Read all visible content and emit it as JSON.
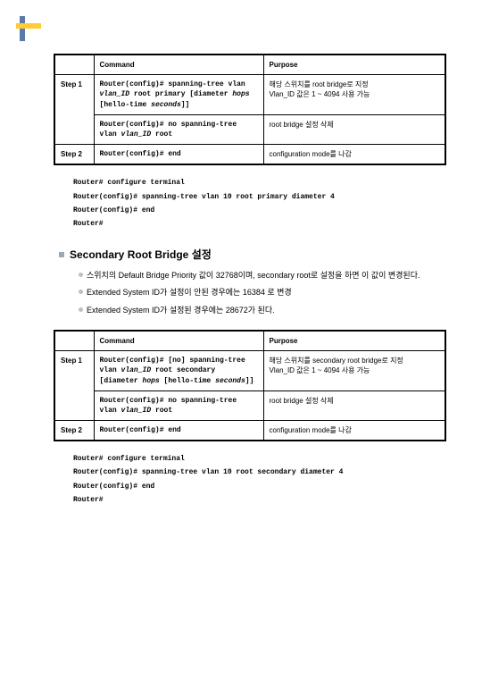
{
  "table1": {
    "headers": [
      "",
      "Command",
      "Purpose"
    ],
    "rows": [
      {
        "step": "Step 1",
        "cmd_html": "Router(config)# <b>spanning-tree vlan</b> <i>vlan_ID</i> <b>root primary</b> [<b>diameter</b> <i>hops</i> [<b>hello-time</b> <i>seconds</i>]]",
        "purpose": "해당 스위치를 root bridge로 지정\nVlan_ID 값은 1 ~ 4094 사용 가능"
      },
      {
        "step": "",
        "cmd_html": "Router(config)# <b>no spanning-tree vlan</b> <i>vlan_ID</i> <b>root</b>",
        "purpose": "root bridge 설정 삭제"
      },
      {
        "step": "Step 2",
        "cmd_html": "Router(config)# <b>end</b>",
        "purpose": "configuration mode를 나감"
      }
    ]
  },
  "terminal1": [
    "Router# configure terminal",
    "Router(config)# spanning-tree vlan 10 root primary diameter 4",
    "Router(config)# end",
    "Router#"
  ],
  "section_title": "Secondary Root Bridge 설정",
  "bullets": [
    "스위치의 Default Bridge Priority 값이 32768이며, secondary root로 설정을 하면 이 값이 변경된다.",
    "Extended System ID가 설정이 안된 경우에는 16384 로 변경",
    "Extended System ID가 설정된 경우에는 28672가 된다."
  ],
  "table2": {
    "headers": [
      "",
      "Command",
      "Purpose"
    ],
    "rows": [
      {
        "step": "Step 1",
        "cmd_html": "Router(config)# [<b>no</b>] <b>spanning-tree vlan</b> <i>vlan_ID</i> <b>root secondary</b> [<b>diameter</b> <i>hops</i> [<b>hello-time</b> <i>seconds</i>]]",
        "purpose": "해당 스위치를 secondary root bridge로 지정\nVlan_ID 값은 1 ~ 4094 사용 가능"
      },
      {
        "step": "",
        "cmd_html": "Router(config)# <b>no spanning-tree vlan</b> <i>vlan_ID</i> <b>root</b>",
        "purpose": "root bridge 설정 삭제"
      },
      {
        "step": "Step 2",
        "cmd_html": "Router(config)# <b>end</b>",
        "purpose": "configuration mode를 나감"
      }
    ]
  },
  "terminal2": [
    "Router# configure terminal",
    "Router(config)# spanning-tree vlan 10 root secondary diameter 4",
    "Router(config)# end",
    "Router#"
  ]
}
